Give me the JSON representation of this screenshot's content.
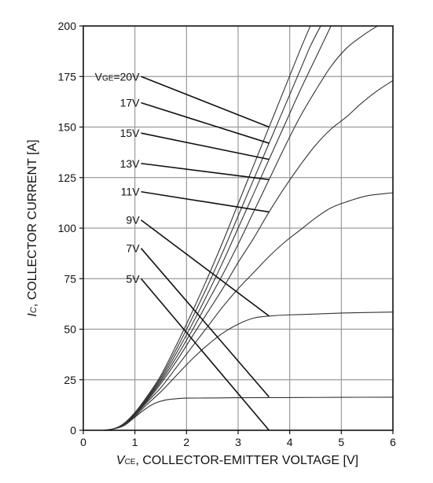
{
  "chart_data": {
    "type": "line",
    "title": "",
    "xlabel": {
      "symbol": "V",
      "subscript": "CE",
      "text": ", COLLECTOR-EMITTER VOLTAGE [V]"
    },
    "ylabel": {
      "symbol": "I",
      "subscript": "C",
      "text": ", COLLECTOR CURRENT [A]"
    },
    "xlim": [
      0,
      6
    ],
    "ylim": [
      0,
      200
    ],
    "x_ticks": [
      "0",
      "1",
      "2",
      "3",
      "4",
      "5",
      "6"
    ],
    "y_ticks": [
      "0",
      "25",
      "50",
      "75",
      "100",
      "125",
      "150",
      "175",
      "200"
    ],
    "grid": true,
    "legend": "none",
    "series": [
      {
        "name": "5V",
        "label_y": 75,
        "points": [
          [
            0.4,
            0
          ],
          [
            0.6,
            0.7
          ],
          [
            0.8,
            2.5
          ],
          [
            1.0,
            6.5
          ],
          [
            1.2,
            10.5
          ],
          [
            1.4,
            13.5
          ],
          [
            1.6,
            15
          ],
          [
            1.8,
            15.6
          ],
          [
            2.0,
            15.9
          ],
          [
            2.5,
            16
          ],
          [
            3.0,
            16.1
          ],
          [
            4.0,
            16.2
          ],
          [
            5.0,
            16.3
          ],
          [
            6.0,
            16.4
          ]
        ]
      },
      {
        "name": "7V",
        "label_y": 90,
        "points": [
          [
            0.4,
            0
          ],
          [
            0.6,
            0.8
          ],
          [
            0.8,
            3
          ],
          [
            1.0,
            7
          ],
          [
            1.2,
            12
          ],
          [
            1.5,
            19
          ],
          [
            1.8,
            27
          ],
          [
            2.1,
            35
          ],
          [
            2.4,
            42
          ],
          [
            2.7,
            48
          ],
          [
            3.0,
            52.5
          ],
          [
            3.3,
            55.5
          ],
          [
            3.6,
            56.5
          ],
          [
            3.9,
            57
          ],
          [
            4.5,
            57.5
          ],
          [
            5.0,
            58
          ],
          [
            6.0,
            58.5
          ]
        ]
      },
      {
        "name": "9V",
        "label_y": 104,
        "points": [
          [
            0.4,
            0
          ],
          [
            0.6,
            0.8
          ],
          [
            0.8,
            3
          ],
          [
            1.0,
            7.5
          ],
          [
            1.2,
            13
          ],
          [
            1.5,
            21
          ],
          [
            1.8,
            31
          ],
          [
            2.1,
            41
          ],
          [
            2.4,
            51
          ],
          [
            2.7,
            61
          ],
          [
            3.0,
            70
          ],
          [
            3.3,
            78
          ],
          [
            3.6,
            86
          ],
          [
            3.9,
            93
          ],
          [
            4.2,
            99
          ],
          [
            4.5,
            105
          ],
          [
            4.8,
            110
          ],
          [
            5.1,
            113
          ],
          [
            5.5,
            116
          ],
          [
            6.0,
            117.5
          ]
        ]
      },
      {
        "name": "11V",
        "label_y": 118,
        "points": [
          [
            0.4,
            0
          ],
          [
            0.6,
            0.8
          ],
          [
            0.8,
            3.2
          ],
          [
            1.0,
            8
          ],
          [
            1.2,
            13.5
          ],
          [
            1.5,
            23
          ],
          [
            1.8,
            34
          ],
          [
            2.1,
            46
          ],
          [
            2.4,
            58
          ],
          [
            2.7,
            70
          ],
          [
            3.0,
            83
          ],
          [
            3.3,
            95
          ],
          [
            3.6,
            108
          ],
          [
            3.9,
            120
          ],
          [
            4.2,
            131
          ],
          [
            4.5,
            141
          ],
          [
            4.8,
            149
          ],
          [
            5.1,
            155
          ],
          [
            5.4,
            162
          ],
          [
            5.7,
            168
          ],
          [
            6.0,
            173
          ]
        ]
      },
      {
        "name": "13V",
        "label_y": 132,
        "points": [
          [
            0.4,
            0
          ],
          [
            0.6,
            0.8
          ],
          [
            0.8,
            3.3
          ],
          [
            1.0,
            8.2
          ],
          [
            1.2,
            14
          ],
          [
            1.5,
            24
          ],
          [
            1.8,
            36
          ],
          [
            2.1,
            49
          ],
          [
            2.4,
            63
          ],
          [
            2.7,
            77
          ],
          [
            3.0,
            92
          ],
          [
            3.3,
            108
          ],
          [
            3.6,
            124
          ],
          [
            3.9,
            140
          ],
          [
            4.2,
            155
          ],
          [
            4.5,
            168
          ],
          [
            4.8,
            180
          ],
          [
            5.1,
            189
          ],
          [
            5.4,
            195
          ],
          [
            5.7,
            200
          ]
        ]
      },
      {
        "name": "15V",
        "label_y": 147,
        "points": [
          [
            0.4,
            0
          ],
          [
            0.6,
            0.8
          ],
          [
            0.8,
            3.4
          ],
          [
            1.0,
            8.4
          ],
          [
            1.2,
            14.5
          ],
          [
            1.5,
            25
          ],
          [
            1.8,
            38
          ],
          [
            2.1,
            52
          ],
          [
            2.4,
            67
          ],
          [
            2.7,
            83
          ],
          [
            3.0,
            100
          ],
          [
            3.3,
            117
          ],
          [
            3.6,
            134
          ],
          [
            3.9,
            151
          ],
          [
            4.2,
            168
          ],
          [
            4.5,
            184
          ],
          [
            4.8,
            200
          ]
        ]
      },
      {
        "name": "17V",
        "label_y": 162,
        "points": [
          [
            0.4,
            0
          ],
          [
            0.6,
            0.8
          ],
          [
            0.8,
            3.5
          ],
          [
            1.0,
            8.6
          ],
          [
            1.2,
            15
          ],
          [
            1.5,
            26
          ],
          [
            1.8,
            40
          ],
          [
            2.1,
            55
          ],
          [
            2.4,
            71
          ],
          [
            2.7,
            88
          ],
          [
            3.0,
            106
          ],
          [
            3.3,
            124
          ],
          [
            3.6,
            142
          ],
          [
            3.9,
            160
          ],
          [
            4.2,
            178
          ],
          [
            4.4,
            190
          ],
          [
            4.6,
            200
          ]
        ]
      },
      {
        "name": "20V",
        "label_y": 175,
        "display": "=20V",
        "points": [
          [
            0.4,
            0
          ],
          [
            0.6,
            0.8
          ],
          [
            0.8,
            3.6
          ],
          [
            1.0,
            8.8
          ],
          [
            1.2,
            15.5
          ],
          [
            1.5,
            27
          ],
          [
            1.8,
            42
          ],
          [
            2.1,
            58
          ],
          [
            2.4,
            75
          ],
          [
            2.7,
            93
          ],
          [
            3.0,
            112
          ],
          [
            3.3,
            131
          ],
          [
            3.6,
            150
          ],
          [
            3.9,
            169
          ],
          [
            4.2,
            188
          ],
          [
            4.4,
            200
          ]
        ]
      }
    ],
    "annotation_prefix": {
      "symbol": "V",
      "subscript": "GE"
    }
  }
}
